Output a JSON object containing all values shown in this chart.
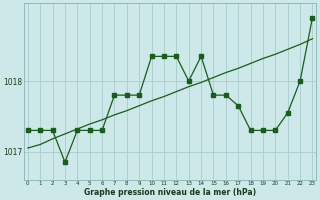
{
  "xlabel": "Graphe pression niveau de la mer (hPa)",
  "bg_color": "#cce8e8",
  "grid_color": "#aacccc",
  "line_color": "#1a5c1a",
  "x_values": [
    0,
    1,
    2,
    3,
    4,
    5,
    6,
    7,
    8,
    9,
    10,
    11,
    12,
    13,
    14,
    15,
    16,
    17,
    18,
    19,
    20,
    21,
    22,
    23
  ],
  "y_pressure": [
    1017.3,
    1017.3,
    1017.3,
    1016.85,
    1017.3,
    1017.3,
    1017.3,
    1017.8,
    1017.8,
    1017.8,
    1018.35,
    1018.35,
    1018.35,
    1018.0,
    1018.35,
    1017.8,
    1017.8,
    1017.65,
    1017.3,
    1017.3,
    1017.3,
    1017.55,
    1018.0,
    1018.9
  ],
  "y_trend": [
    1017.05,
    1017.1,
    1017.18,
    1017.25,
    1017.32,
    1017.39,
    1017.45,
    1017.52,
    1017.58,
    1017.65,
    1017.72,
    1017.78,
    1017.85,
    1017.92,
    1017.98,
    1018.05,
    1018.12,
    1018.18,
    1018.25,
    1018.32,
    1018.38,
    1018.45,
    1018.52,
    1018.6
  ],
  "ylim": [
    1016.6,
    1019.1
  ],
  "yticks": [
    1017,
    1018
  ],
  "xlim": [
    -0.3,
    23.3
  ],
  "xticks": [
    0,
    1,
    2,
    3,
    4,
    5,
    6,
    7,
    8,
    9,
    10,
    11,
    12,
    13,
    14,
    15,
    16,
    17,
    18,
    19,
    20,
    21,
    22,
    23
  ]
}
